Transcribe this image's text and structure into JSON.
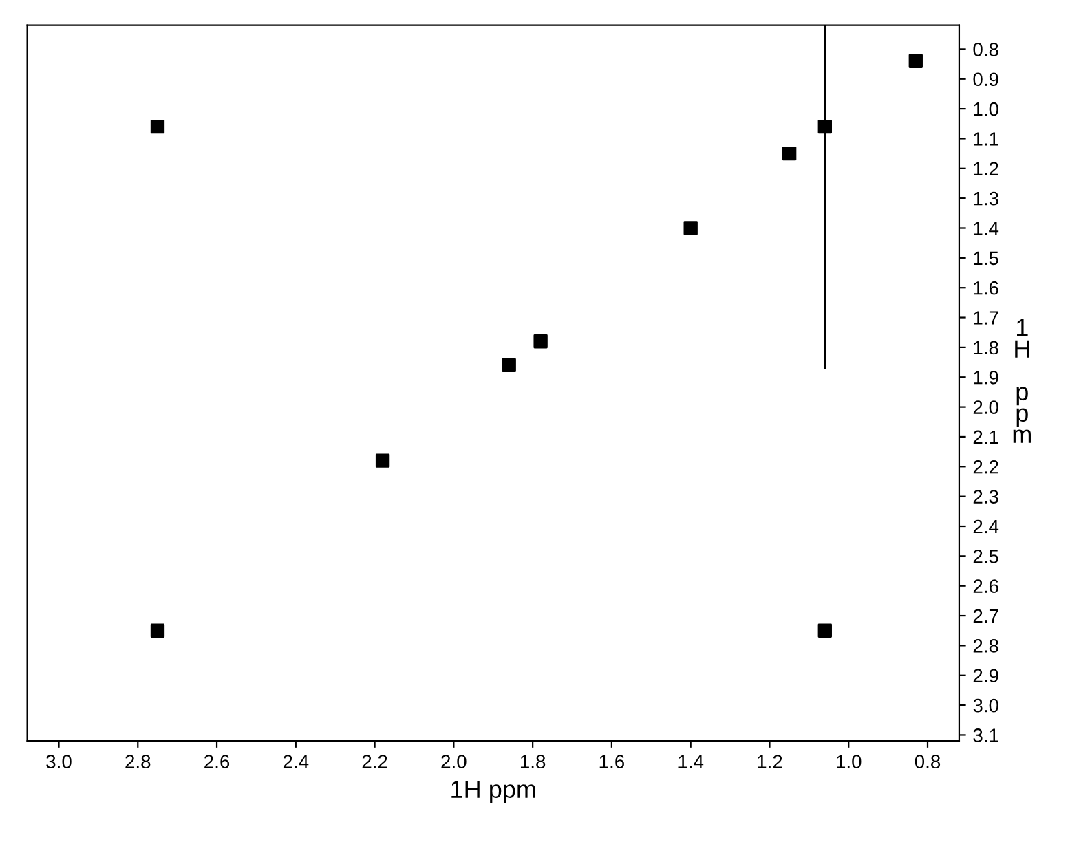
{
  "chart_data": {
    "type": "scatter",
    "xlabel": "1H ppm",
    "ylabel": "1H ppm",
    "grid": false,
    "legend": false,
    "xlim": [
      3.08,
      0.72
    ],
    "xticks": [
      {
        "value": 3,
        "label": "3.0"
      },
      2.8,
      2.6,
      2.4,
      2.2,
      {
        "value": 2,
        "label": "2.0"
      },
      1.8,
      1.6,
      1.4,
      1.2,
      {
        "value": 1,
        "label": "1.0"
      },
      0.8
    ],
    "ylim": [
      3.12,
      0.72
    ],
    "yticks": [
      0.8,
      0.9,
      {
        "value": 1,
        "label": "1.0"
      },
      1.1,
      1.2,
      1.3,
      1.4,
      1.5,
      1.6,
      1.7,
      1.8,
      1.9,
      {
        "value": 2,
        "label": "2.0"
      },
      2.1,
      2.2,
      2.3,
      2.4,
      2.5,
      2.6,
      2.7,
      2.8,
      2.9,
      {
        "value": 3,
        "label": "3.0"
      },
      3.1
    ],
    "series": [
      {
        "marker": "square",
        "color": "#000000",
        "x": [
          2.75,
          1.06,
          1.15,
          0.83,
          1.4,
          1.78,
          1.86,
          2.18,
          2.75,
          1.06
        ],
        "values": [
          1.06,
          1.06,
          1.15,
          0.84,
          1.4,
          1.78,
          1.86,
          2.18,
          2.75,
          2.75
        ]
      },
      {
        "type": "line",
        "color": "#000000",
        "x": [
          1.06,
          1.06
        ],
        "values": [
          0.72,
          1.87
        ]
      }
    ]
  }
}
